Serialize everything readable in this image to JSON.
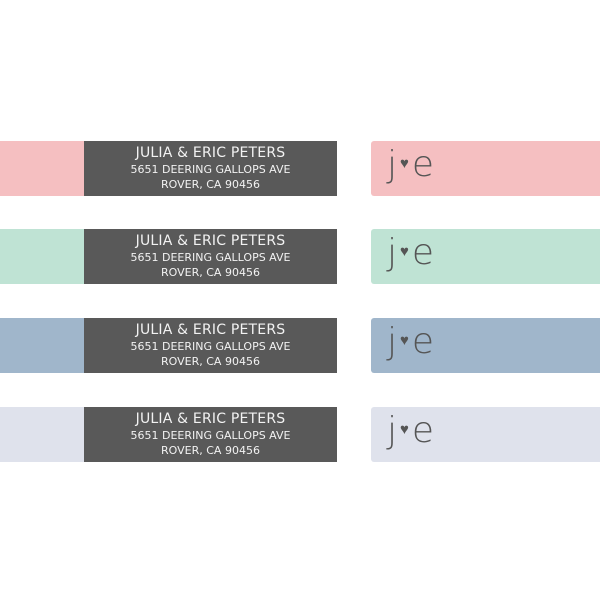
{
  "labels": [
    {
      "color": "#f5bfc1"
    },
    {
      "color": "#bfe3d4"
    },
    {
      "color": "#a0b6cb"
    },
    {
      "color": "#dfe2ec"
    }
  ],
  "address": {
    "name": "JULIA & ERIC PETERS",
    "street": "5651 DEERING GALLOPS AVE",
    "city": "ROVER, CA 90456"
  },
  "monogram": {
    "left": "j",
    "heart": "♥",
    "right": "e"
  },
  "colors": {
    "address_bg": "#595959",
    "text": "#555555"
  }
}
